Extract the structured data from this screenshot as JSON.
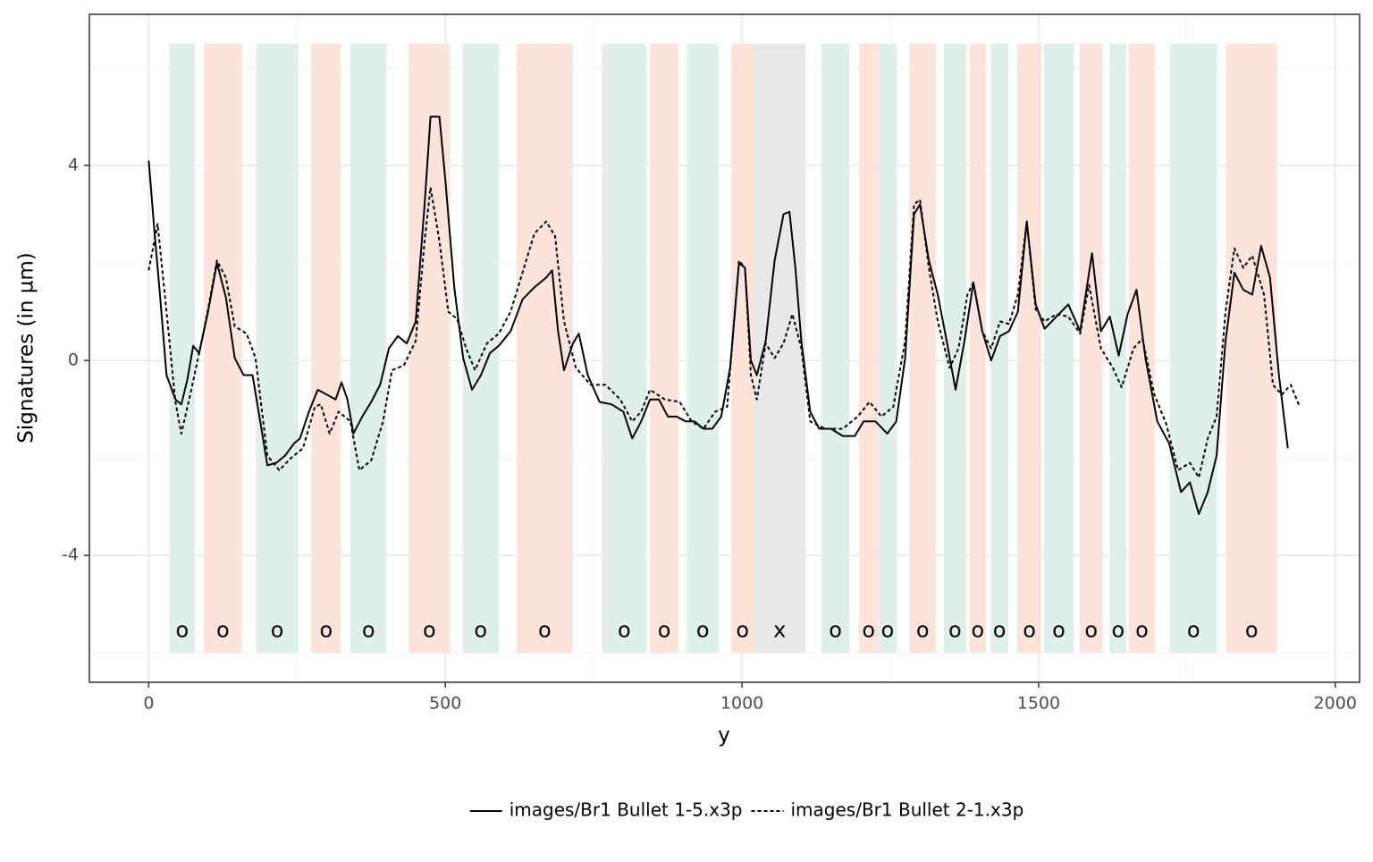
{
  "chart_data": {
    "type": "line",
    "xlabel": "y",
    "ylabel": "Signatures (in µm)",
    "xlim": [
      -100,
      2041
    ],
    "ylim": [
      -6.6,
      7.1
    ],
    "xticks": [
      0,
      500,
      1000,
      1500,
      2000
    ],
    "yticks": [
      -4,
      0,
      4
    ],
    "xminor": [
      250,
      750,
      1250,
      1750
    ],
    "yminor": [
      -6,
      -2,
      2,
      6
    ],
    "grid": true,
    "legend": "bottom",
    "regions": [
      {
        "start": 35,
        "end": 78,
        "label": "o",
        "color": "#dff0eb"
      },
      {
        "start": 93,
        "end": 157,
        "label": "o",
        "color": "#fde4db"
      },
      {
        "start": 181,
        "end": 252,
        "label": "o",
        "color": "#dff0eb"
      },
      {
        "start": 274,
        "end": 324,
        "label": "o",
        "color": "#fde4db"
      },
      {
        "start": 340,
        "end": 401,
        "label": "o",
        "color": "#dff0eb"
      },
      {
        "start": 438,
        "end": 508,
        "label": "o",
        "color": "#fde4db"
      },
      {
        "start": 529,
        "end": 590,
        "label": "o",
        "color": "#dff0eb"
      },
      {
        "start": 620,
        "end": 715,
        "label": "o",
        "color": "#fde4db"
      },
      {
        "start": 764,
        "end": 839,
        "label": "o",
        "color": "#dff0eb"
      },
      {
        "start": 845,
        "end": 893,
        "label": "o",
        "color": "#fde4db"
      },
      {
        "start": 907,
        "end": 961,
        "label": "o",
        "color": "#dff0eb"
      },
      {
        "start": 982,
        "end": 1020,
        "label": "o",
        "color": "#fde4db"
      },
      {
        "start": 1020,
        "end": 1107,
        "label": "x",
        "color": "#e8e8e8"
      },
      {
        "start": 1134,
        "end": 1181,
        "label": "o",
        "color": "#dff0eb"
      },
      {
        "start": 1197,
        "end": 1230,
        "label": "o",
        "color": "#fde4db"
      },
      {
        "start": 1230,
        "end": 1261,
        "label": "o",
        "color": "#dff0eb"
      },
      {
        "start": 1282,
        "end": 1327,
        "label": "o",
        "color": "#fde4db"
      },
      {
        "start": 1340,
        "end": 1378,
        "label": "o",
        "color": "#dff0eb"
      },
      {
        "start": 1384,
        "end": 1411,
        "label": "o",
        "color": "#fde4db"
      },
      {
        "start": 1419,
        "end": 1449,
        "label": "o",
        "color": "#dff0eb"
      },
      {
        "start": 1464,
        "end": 1505,
        "label": "o",
        "color": "#fde4db"
      },
      {
        "start": 1509,
        "end": 1559,
        "label": "o",
        "color": "#dff0eb"
      },
      {
        "start": 1569,
        "end": 1608,
        "label": "o",
        "color": "#fde4db"
      },
      {
        "start": 1620,
        "end": 1648,
        "label": "o",
        "color": "#dff0eb"
      },
      {
        "start": 1652,
        "end": 1696,
        "label": "o",
        "color": "#fde4db"
      },
      {
        "start": 1721,
        "end": 1801,
        "label": "o",
        "color": "#dff0eb"
      },
      {
        "start": 1816,
        "end": 1902,
        "label": "o",
        "color": "#fde4db"
      }
    ],
    "series": [
      {
        "name": "images/Br1 Bullet 1-5.x3p",
        "color": "#000000",
        "linestyle": "solid",
        "x": [
          0,
          10,
          20,
          30,
          45,
          55,
          65,
          75,
          85,
          100,
          115,
          130,
          145,
          160,
          175,
          190,
          200,
          215,
          230,
          245,
          255,
          270,
          285,
          300,
          315,
          325,
          335,
          345,
          360,
          375,
          390,
          405,
          420,
          435,
          450,
          465,
          475,
          490,
          500,
          515,
          530,
          545,
          560,
          575,
          590,
          610,
          630,
          650,
          670,
          680,
          690,
          700,
          715,
          725,
          740,
          760,
          780,
          800,
          815,
          830,
          845,
          860,
          875,
          890,
          905,
          920,
          935,
          950,
          965,
          980,
          995,
          1005,
          1015,
          1025,
          1040,
          1055,
          1070,
          1080,
          1090,
          1100,
          1115,
          1130,
          1150,
          1170,
          1190,
          1205,
          1225,
          1245,
          1260,
          1275,
          1290,
          1300,
          1315,
          1330,
          1345,
          1360,
          1375,
          1390,
          1405,
          1420,
          1435,
          1450,
          1465,
          1480,
          1495,
          1510,
          1530,
          1550,
          1570,
          1590,
          1605,
          1620,
          1635,
          1650,
          1665,
          1680,
          1700,
          1720,
          1740,
          1755,
          1770,
          1785,
          1800,
          1815,
          1830,
          1845,
          1860,
          1875,
          1890,
          1905,
          1920
        ],
        "values": [
          4.1,
          2.6,
          1.2,
          -0.3,
          -0.8,
          -0.9,
          -0.4,
          0.3,
          0.15,
          1.0,
          2.0,
          1.3,
          0.05,
          -0.3,
          -0.3,
          -1.4,
          -2.15,
          -2.1,
          -1.95,
          -1.7,
          -1.6,
          -1.05,
          -0.6,
          -0.7,
          -0.8,
          -0.45,
          -0.8,
          -1.5,
          -1.15,
          -0.85,
          -0.5,
          0.25,
          0.5,
          0.35,
          0.8,
          3.2,
          5.0,
          5.0,
          3.7,
          1.5,
          0.05,
          -0.6,
          -0.3,
          0.15,
          0.3,
          0.6,
          1.25,
          1.5,
          1.7,
          1.85,
          0.6,
          -0.2,
          0.35,
          0.55,
          -0.3,
          -0.85,
          -0.9,
          -1.05,
          -1.6,
          -1.25,
          -0.8,
          -0.8,
          -1.15,
          -1.15,
          -1.25,
          -1.25,
          -1.4,
          -1.4,
          -1.15,
          -0.15,
          2.0,
          1.9,
          0,
          -0.3,
          0.4,
          2.05,
          3.0,
          3.05,
          1.9,
          0.4,
          -1.05,
          -1.4,
          -1.4,
          -1.55,
          -1.55,
          -1.25,
          -1.25,
          -1.5,
          -1.25,
          0.05,
          3.0,
          3.2,
          2.05,
          1.35,
          0.4,
          -0.6,
          0.4,
          1.6,
          0.6,
          0,
          0.5,
          0.6,
          1.0,
          2.85,
          1.15,
          0.65,
          0.9,
          1.15,
          0.6,
          2.2,
          0.6,
          0.9,
          0.1,
          0.95,
          1.45,
          0.05,
          -1.25,
          -1.7,
          -2.7,
          -2.5,
          -3.15,
          -2.7,
          -1.95,
          0.4,
          1.8,
          1.45,
          1.35,
          2.35,
          1.7,
          -0.3,
          -1.8
        ]
      },
      {
        "name": "images/Br1 Bullet 2-1.x3p",
        "color": "#000000",
        "linestyle": "dashed",
        "x": [
          0,
          15,
          30,
          45,
          55,
          70,
          85,
          100,
          115,
          130,
          145,
          165,
          180,
          200,
          220,
          240,
          260,
          280,
          290,
          305,
          320,
          340,
          355,
          375,
          395,
          410,
          430,
          450,
          465,
          475,
          490,
          505,
          520,
          535,
          550,
          570,
          590,
          610,
          630,
          650,
          670,
          685,
          700,
          720,
          745,
          770,
          795,
          815,
          830,
          845,
          870,
          895,
          915,
          935,
          955,
          975,
          995,
          1005,
          1015,
          1025,
          1040,
          1055,
          1070,
          1085,
          1100,
          1115,
          1140,
          1170,
          1195,
          1215,
          1235,
          1255,
          1275,
          1290,
          1300,
          1315,
          1330,
          1350,
          1365,
          1380,
          1390,
          1405,
          1420,
          1435,
          1450,
          1465,
          1480,
          1495,
          1510,
          1530,
          1550,
          1570,
          1585,
          1605,
          1625,
          1640,
          1660,
          1675,
          1695,
          1715,
          1735,
          1755,
          1770,
          1785,
          1800,
          1815,
          1830,
          1845,
          1860,
          1880,
          1895,
          1910,
          1925,
          1940
        ],
        "values": [
          1.85,
          2.8,
          1.0,
          -0.85,
          -1.5,
          -0.7,
          0.15,
          1.05,
          2.05,
          1.7,
          0.7,
          0.55,
          0.05,
          -1.95,
          -2.25,
          -2.0,
          -1.8,
          -0.95,
          -0.9,
          -1.5,
          -1.05,
          -1.25,
          -2.25,
          -2.05,
          -1.25,
          -0.2,
          -0.1,
          0.4,
          2.45,
          3.55,
          2.45,
          1.0,
          0.85,
          0.25,
          -0.2,
          0.35,
          0.55,
          1.0,
          1.8,
          2.6,
          2.85,
          2.55,
          0.8,
          -0.15,
          -0.5,
          -0.5,
          -0.8,
          -1.25,
          -1.05,
          -0.6,
          -0.8,
          -0.85,
          -1.25,
          -1.4,
          -1.05,
          -0.95,
          2.05,
          1.9,
          -0.3,
          -0.8,
          0.35,
          0.05,
          0.35,
          0.95,
          0.25,
          -1.25,
          -1.4,
          -1.4,
          -1.15,
          -0.85,
          -1.15,
          -0.95,
          0.4,
          3.2,
          3.3,
          1.9,
          0.8,
          -0.15,
          0.25,
          1.35,
          1.6,
          0.6,
          0.25,
          0.8,
          0.75,
          1.35,
          2.85,
          1.05,
          0.8,
          0.95,
          0.9,
          0.55,
          1.55,
          0.25,
          -0.15,
          -0.55,
          0.25,
          0.45,
          -0.7,
          -1.3,
          -2.25,
          -2.1,
          -2.4,
          -1.6,
          -1.15,
          1.0,
          2.3,
          1.9,
          2.15,
          1.35,
          -0.5,
          -0.7,
          -0.5,
          -0.95
        ]
      }
    ]
  }
}
